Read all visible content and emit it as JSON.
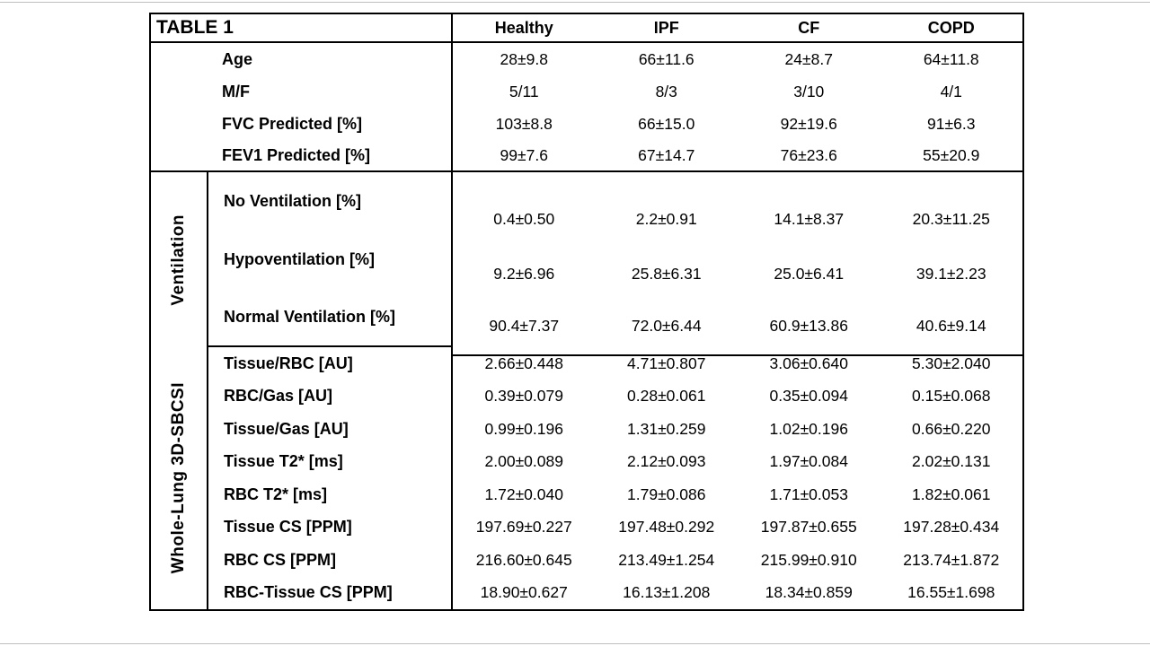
{
  "table": {
    "title": "TABLE 1",
    "columns": [
      "Healthy",
      "IPF",
      "CF",
      "COPD"
    ],
    "sections": [
      {
        "name": "",
        "rows": [
          {
            "label": "Age",
            "values": [
              "28±9.8",
              "66±11.6",
              "24±8.7",
              "64±11.8"
            ]
          },
          {
            "label": "M/F",
            "values": [
              "5/11",
              "8/3",
              "3/10",
              "4/1"
            ]
          },
          {
            "label": "FVC Predicted [%]",
            "values": [
              "103±8.8",
              "66±15.0",
              "92±19.6",
              "91±6.3"
            ]
          },
          {
            "label": "FEV1 Predicted [%]",
            "values": [
              "99±7.6",
              "67±14.7",
              "76±23.6",
              "55±20.9"
            ]
          }
        ]
      },
      {
        "name": "Ventilation",
        "rows": [
          {
            "label": "No Ventilation [%]",
            "values": [
              "0.4±0.50",
              "2.2±0.91",
              "14.1±8.37",
              "20.3±11.25"
            ]
          },
          {
            "label": "Hypoventilation [%]",
            "values": [
              "9.2±6.96",
              "25.8±6.31",
              "25.0±6.41",
              "39.1±2.23"
            ]
          },
          {
            "label": "Normal Ventilation [%]",
            "values": [
              "90.4±7.37",
              "72.0±6.44",
              "60.9±13.86",
              "40.6±9.14"
            ]
          }
        ]
      },
      {
        "name": "Whole-Lung 3D-SBCSI",
        "rows": [
          {
            "label": "Tissue/RBC [AU]",
            "values": [
              "2.66±0.448",
              "4.71±0.807",
              "3.06±0.640",
              "5.30±2.040"
            ]
          },
          {
            "label": "RBC/Gas [AU]",
            "values": [
              "0.39±0.079",
              "0.28±0.061",
              "0.35±0.094",
              "0.15±0.068"
            ]
          },
          {
            "label": "Tissue/Gas [AU]",
            "values": [
              "0.99±0.196",
              "1.31±0.259",
              "1.02±0.196",
              "0.66±0.220"
            ]
          },
          {
            "label": "Tissue T2* [ms]",
            "values": [
              "2.00±0.089",
              "2.12±0.093",
              "1.97±0.084",
              "2.02±0.131"
            ]
          },
          {
            "label": "RBC T2* [ms]",
            "values": [
              "1.72±0.040",
              "1.79±0.086",
              "1.71±0.053",
              "1.82±0.061"
            ]
          },
          {
            "label": "Tissue CS [PPM]",
            "values": [
              "197.69±0.227",
              "197.48±0.292",
              "197.87±0.655",
              "197.28±0.434"
            ]
          },
          {
            "label": "RBC CS [PPM]",
            "values": [
              "216.60±0.645",
              "213.49±1.254",
              "215.99±0.910",
              "213.74±1.872"
            ]
          },
          {
            "label": "RBC-Tissue CS [PPM]",
            "values": [
              "18.90±0.627",
              "16.13±1.208",
              "18.34±0.859",
              "16.55±1.698"
            ]
          }
        ]
      }
    ]
  },
  "colors": {
    "border": "#000000",
    "background": "#ffffff",
    "frame_line": "#bfbfbf"
  }
}
